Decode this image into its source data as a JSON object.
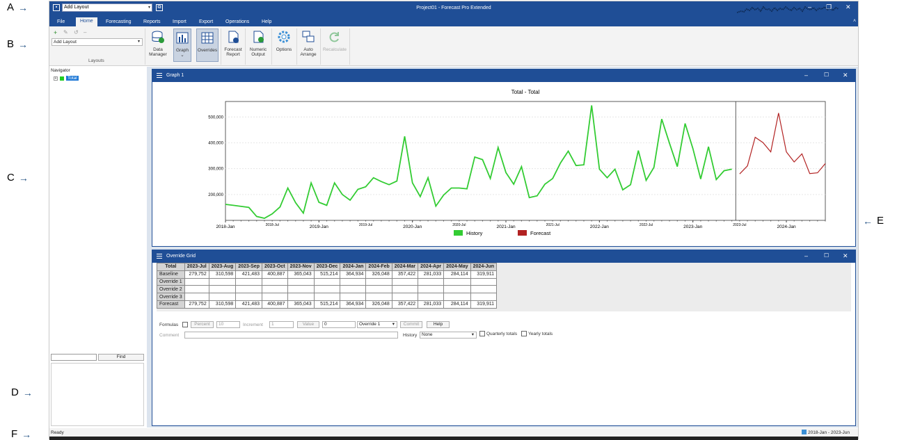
{
  "callouts": [
    "A",
    "B",
    "C",
    "D",
    "E",
    "F"
  ],
  "titlebar": {
    "qa_select": "Add Layout",
    "title": "Project01 - Forecast Pro Extended"
  },
  "menu": [
    "File",
    "Home",
    "Forecasting",
    "Reports",
    "Import",
    "Export",
    "Operations",
    "Help"
  ],
  "ribbon": {
    "layout_select": "Add Layout",
    "layouts_group": "Layouts",
    "buttons": [
      {
        "label": "Data\nManager",
        "icon": "database-icon"
      },
      {
        "label": "Graph",
        "icon": "graph-icon"
      },
      {
        "label": "Overrides",
        "icon": "overrides-grid-icon"
      },
      {
        "label": "Forecast\nReport",
        "icon": "report-icon"
      },
      {
        "label": "Numeric\nOutput",
        "icon": "numeric-output-icon"
      },
      {
        "label": "Options",
        "icon": "gear-icon"
      },
      {
        "label": "Auto\nArrange",
        "icon": "arrange-icon"
      },
      {
        "label": "Recalculate",
        "icon": "recalculate-icon"
      }
    ]
  },
  "navigator": {
    "title": "Navigator",
    "tree_item": "Total",
    "find_label": "Find"
  },
  "graph_pane": {
    "title": "Graph 1"
  },
  "chart_data": {
    "type": "line",
    "title": "Total - Total",
    "x_ticks_major": [
      "2018-Jan",
      "2019-Jan",
      "2020-Jan",
      "2021-Jan",
      "2022-Jan",
      "2023-Jan",
      "2024-Jan"
    ],
    "x_ticks_minor": [
      "2018-Jul",
      "2019-Jul",
      "2020-Jul",
      "2021-Jul",
      "2022-Jul",
      "2023-Jul"
    ],
    "y_ticks": [
      "200,000",
      "300,000",
      "400,000",
      "500,000"
    ],
    "ylim": [
      100000,
      560000
    ],
    "series": [
      {
        "name": "History",
        "color": "#33cc33",
        "start": "2018-Jan",
        "values": [
          162000,
          158000,
          154000,
          150000,
          115000,
          108000,
          125000,
          152000,
          225000,
          168000,
          128000,
          245000,
          170000,
          158000,
          245000,
          200000,
          178000,
          220000,
          230000,
          265000,
          250000,
          238000,
          252000,
          425000,
          245000,
          192000,
          265000,
          155000,
          198000,
          225000,
          225000,
          222000,
          345000,
          335000,
          262000,
          382000,
          285000,
          240000,
          308000,
          188000,
          195000,
          240000,
          262000,
          322000,
          368000,
          312000,
          315000,
          545000,
          298000,
          265000,
          298000,
          218000,
          238000,
          370000,
          255000,
          305000,
          492000,
          398000,
          308000,
          475000,
          378000,
          260000,
          385000,
          258000,
          292000,
          298000
        ]
      },
      {
        "name": "Forecast",
        "color": "#b22222",
        "start": "2023-Jul",
        "values": [
          279752,
          310598,
          421483,
          400887,
          365043,
          515214,
          364934,
          326048,
          357422,
          281033,
          284114,
          319911
        ]
      }
    ]
  },
  "grid_pane": {
    "title": "Override Grid"
  },
  "grid": {
    "corner": "Total",
    "columns": [
      "2023-Jul",
      "2023-Aug",
      "2023-Sep",
      "2023-Oct",
      "2023-Nov",
      "2023-Dec",
      "2024-Jan",
      "2024-Feb",
      "2024-Mar",
      "2024-Apr",
      "2024-May",
      "2024-Jun"
    ],
    "rows": [
      {
        "label": "Baseline",
        "values": [
          "279,752",
          "310,598",
          "421,483",
          "400,887",
          "365,043",
          "515,214",
          "364,934",
          "326,048",
          "357,422",
          "281,033",
          "284,114",
          "319,911"
        ]
      },
      {
        "label": "Override 1",
        "values": [
          "",
          "",
          "",
          "",
          "",
          "",
          "",
          "",
          "",
          "",
          "",
          ""
        ]
      },
      {
        "label": "Override 2",
        "values": [
          "",
          "",
          "",
          "",
          "",
          "",
          "",
          "",
          "",
          "",
          "",
          ""
        ]
      },
      {
        "label": "Override 3",
        "values": [
          "",
          "",
          "",
          "",
          "",
          "",
          "",
          "",
          "",
          "",
          "",
          ""
        ]
      },
      {
        "label": "Forecast",
        "values": [
          "279,752",
          "310,598",
          "421,483",
          "400,887",
          "365,043",
          "515,214",
          "364,934",
          "326,048",
          "357,422",
          "281,033",
          "284,114",
          "319,911"
        ]
      }
    ]
  },
  "controls": {
    "formulas": "Formulas",
    "percent": "Percent",
    "percent_val": "10",
    "increment": "Increment",
    "increment_val": "1",
    "value": "Value",
    "value_val": "0",
    "override_select": "Override 1",
    "commit": "Commit",
    "help": "Help",
    "comment": "Comment",
    "history": "History",
    "history_select": "None",
    "quarterly": "Quarterly totals",
    "yearly": "Yearly totals"
  },
  "status": {
    "left": "Ready",
    "right": "2018-Jan - 2023-Jun"
  }
}
